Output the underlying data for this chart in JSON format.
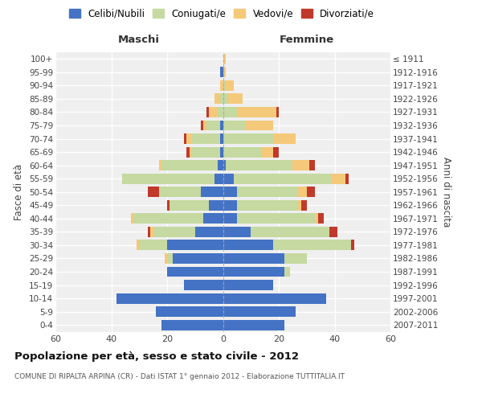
{
  "age_groups": [
    "0-4",
    "5-9",
    "10-14",
    "15-19",
    "20-24",
    "25-29",
    "30-34",
    "35-39",
    "40-44",
    "45-49",
    "50-54",
    "55-59",
    "60-64",
    "65-69",
    "70-74",
    "75-79",
    "80-84",
    "85-89",
    "90-94",
    "95-99",
    "100+"
  ],
  "birth_years": [
    "2007-2011",
    "2002-2006",
    "1997-2001",
    "1992-1996",
    "1987-1991",
    "1982-1986",
    "1977-1981",
    "1972-1976",
    "1967-1971",
    "1962-1966",
    "1957-1961",
    "1952-1956",
    "1947-1951",
    "1942-1946",
    "1937-1941",
    "1932-1936",
    "1927-1931",
    "1922-1926",
    "1917-1921",
    "1912-1916",
    "≤ 1911"
  ],
  "maschi": {
    "celibi": [
      22,
      24,
      38,
      14,
      20,
      18,
      20,
      10,
      7,
      5,
      8,
      3,
      2,
      1,
      1,
      1,
      0,
      0,
      0,
      1,
      0
    ],
    "coniugati": [
      0,
      0,
      0,
      0,
      0,
      2,
      10,
      15,
      25,
      14,
      15,
      33,
      20,
      10,
      10,
      5,
      2,
      1,
      0,
      0,
      0
    ],
    "vedovi": [
      0,
      0,
      0,
      0,
      0,
      1,
      1,
      1,
      1,
      0,
      0,
      0,
      1,
      1,
      2,
      1,
      3,
      2,
      1,
      0,
      0
    ],
    "divorziati": [
      0,
      0,
      0,
      0,
      0,
      0,
      0,
      1,
      0,
      1,
      4,
      0,
      0,
      1,
      1,
      1,
      1,
      0,
      0,
      0,
      0
    ]
  },
  "femmine": {
    "celibi": [
      22,
      26,
      37,
      18,
      22,
      22,
      18,
      10,
      5,
      5,
      5,
      4,
      1,
      0,
      0,
      0,
      0,
      0,
      0,
      0,
      0
    ],
    "coniugati": [
      0,
      0,
      0,
      0,
      2,
      8,
      28,
      28,
      28,
      22,
      22,
      35,
      24,
      14,
      18,
      8,
      5,
      2,
      1,
      0,
      0
    ],
    "vedovi": [
      0,
      0,
      0,
      0,
      0,
      0,
      0,
      0,
      1,
      1,
      3,
      5,
      6,
      4,
      8,
      10,
      14,
      5,
      3,
      1,
      1
    ],
    "divorziati": [
      0,
      0,
      0,
      0,
      0,
      0,
      1,
      3,
      2,
      2,
      3,
      1,
      2,
      2,
      0,
      0,
      1,
      0,
      0,
      0,
      0
    ]
  },
  "colors": {
    "celibi": "#4472C4",
    "coniugati": "#C5D9A0",
    "vedovi": "#F5C97A",
    "divorziati": "#C0392B"
  },
  "xlim": 60,
  "title": "Popolazione per età, sesso e stato civile - 2012",
  "subtitle": "COMUNE DI RIPALTA ARPINA (CR) - Dati ISTAT 1° gennaio 2012 - Elaborazione TUTTITALIA.IT",
  "ylabel_left": "Fasce di età",
  "ylabel_right": "Anni di nascita",
  "xlabel_left": "Maschi",
  "xlabel_right": "Femmine",
  "bg_color": "#efefef",
  "grid_color": "#ffffff"
}
